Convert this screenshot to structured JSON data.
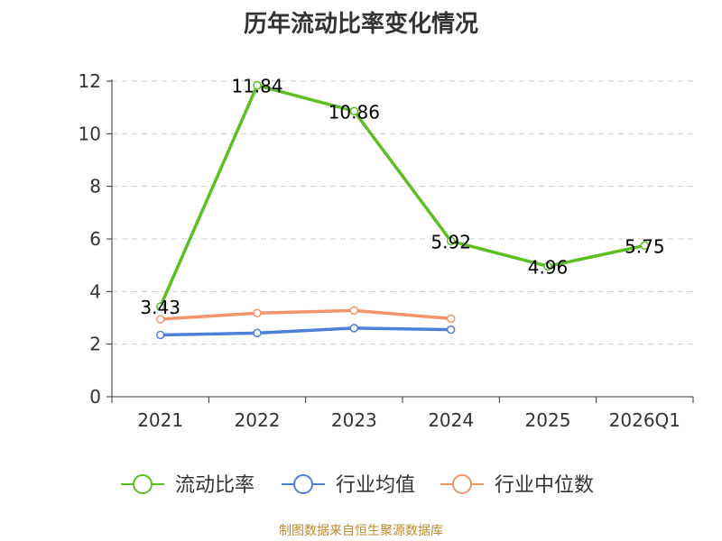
{
  "chart_data": {
    "type": "line",
    "title": "历年流动比率变化情况",
    "categories": [
      "2021",
      "2022",
      "2023",
      "2024",
      "2025",
      "2026Q1"
    ],
    "y_ticks": [
      "0",
      "2",
      "4",
      "6",
      "8",
      "10",
      "12"
    ],
    "ylim": [
      0,
      12
    ],
    "grid": true,
    "legend_position": "bottom",
    "series": [
      {
        "name": "流动比率",
        "color": "#5bbf22",
        "values": [
          3.43,
          11.84,
          10.86,
          5.92,
          4.96,
          5.75
        ],
        "data_labels": [
          "3.43",
          "11.84",
          "10.86",
          "5.92",
          "4.96",
          "5.75"
        ]
      },
      {
        "name": "行业均值",
        "color": "#4e7fd8",
        "values": [
          2.35,
          2.42,
          2.61,
          2.55,
          null,
          null
        ]
      },
      {
        "name": "行业中位数",
        "color": "#f2956b",
        "values": [
          2.95,
          3.18,
          3.28,
          2.97,
          null,
          null
        ]
      }
    ]
  },
  "footer": {
    "source": "制图数据来自恒生聚源数据库"
  }
}
